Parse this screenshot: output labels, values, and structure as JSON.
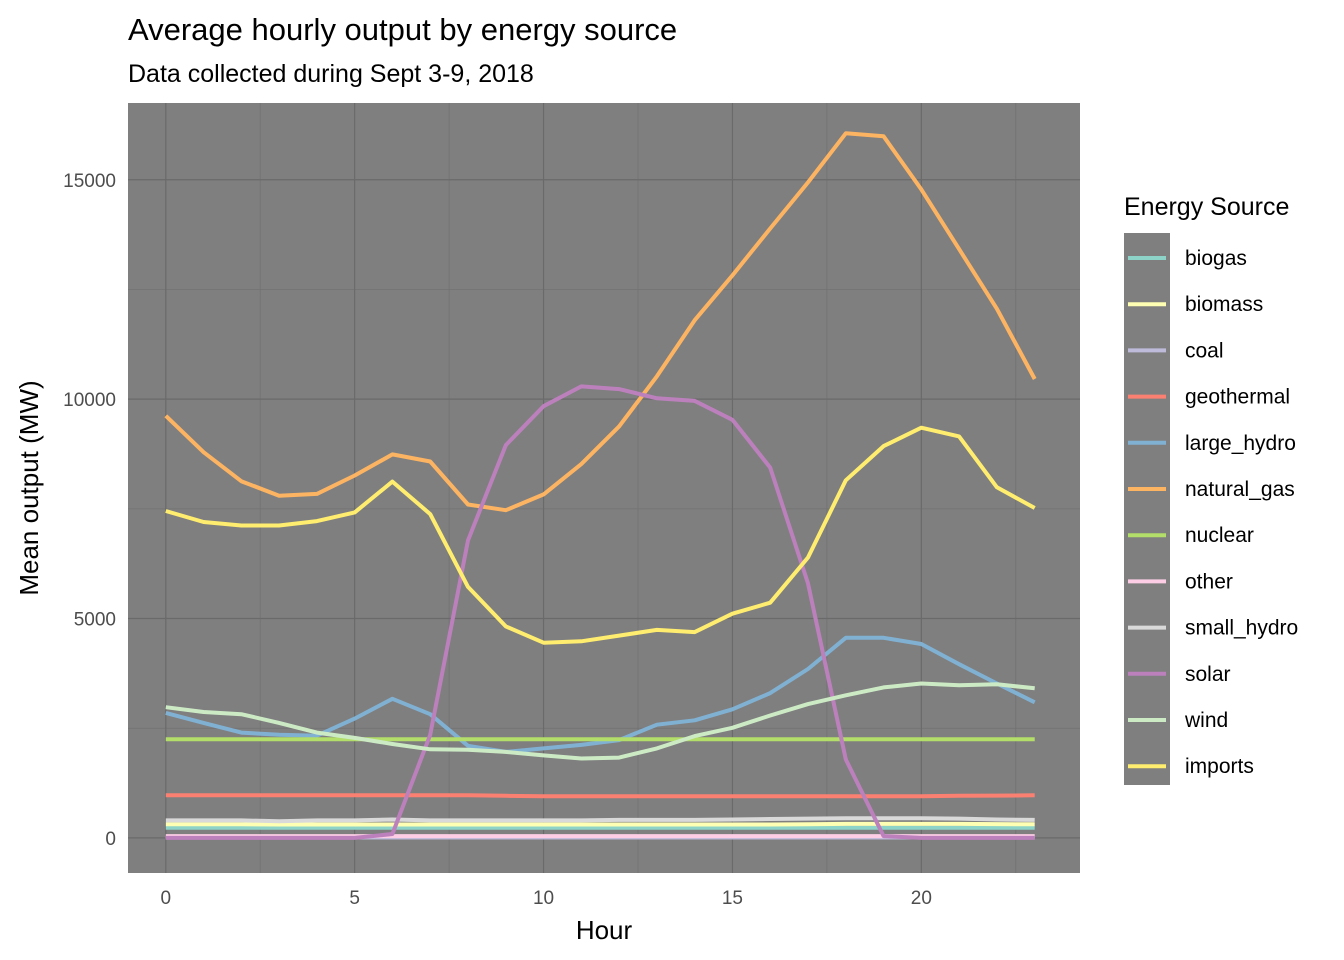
{
  "chart_data": {
    "type": "line",
    "title": "Average hourly output by energy source",
    "subtitle": "Data collected during Sept 3-9, 2018",
    "xlabel": "Hour",
    "ylabel": "Mean output (MW)",
    "xlim": [
      -1,
      24.2
    ],
    "ylim": [
      -800,
      16750
    ],
    "x_ticks": [
      0,
      5,
      10,
      15,
      20
    ],
    "y_ticks": [
      0,
      5000,
      10000,
      15000
    ],
    "grid": true,
    "legend_title": "Energy Source",
    "legend_position": "right",
    "x": [
      0,
      1,
      2,
      3,
      4,
      5,
      6,
      7,
      8,
      9,
      10,
      11,
      12,
      13,
      14,
      15,
      16,
      17,
      18,
      19,
      20,
      21,
      22,
      23
    ],
    "series": [
      {
        "name": "biogas",
        "color": "#8DD3C7",
        "values": [
          230,
          230,
          230,
          230,
          230,
          230,
          230,
          230,
          230,
          230,
          230,
          230,
          230,
          230,
          230,
          230,
          230,
          230,
          230,
          230,
          230,
          230,
          230,
          230
        ]
      },
      {
        "name": "biomass",
        "color": "#FFFFB3",
        "values": [
          310,
          310,
          310,
          305,
          305,
          305,
          305,
          305,
          305,
          305,
          305,
          305,
          305,
          305,
          305,
          305,
          305,
          310,
          320,
          320,
          320,
          320,
          315,
          310
        ]
      },
      {
        "name": "coal",
        "color": "#BEBADA",
        "values": [
          10,
          10,
          10,
          10,
          10,
          10,
          10,
          10,
          10,
          10,
          10,
          10,
          10,
          10,
          10,
          10,
          10,
          10,
          10,
          10,
          10,
          10,
          10,
          10
        ]
      },
      {
        "name": "geothermal",
        "color": "#FB8072",
        "values": [
          970,
          970,
          970,
          970,
          970,
          970,
          970,
          970,
          970,
          960,
          950,
          950,
          950,
          950,
          950,
          950,
          950,
          950,
          950,
          950,
          950,
          960,
          965,
          970
        ]
      },
      {
        "name": "large_hydro",
        "color": "#80B1D3",
        "values": [
          2850,
          2620,
          2400,
          2350,
          2330,
          2720,
          3170,
          2820,
          2100,
          1960,
          2040,
          2120,
          2230,
          2580,
          2680,
          2930,
          3300,
          3850,
          4560,
          4560,
          4420,
          3960,
          3520,
          3090
        ]
      },
      {
        "name": "natural_gas",
        "color": "#FDB462",
        "values": [
          9620,
          8790,
          8130,
          7800,
          7840,
          8260,
          8740,
          8580,
          7600,
          7470,
          7830,
          8520,
          9380,
          10520,
          11800,
          12820,
          13890,
          14940,
          16060,
          15990,
          14780,
          13420,
          12060,
          10460
        ]
      },
      {
        "name": "nuclear",
        "color": "#B3DE69",
        "values": [
          2250,
          2250,
          2250,
          2250,
          2250,
          2250,
          2250,
          2250,
          2250,
          2250,
          2250,
          2250,
          2250,
          2250,
          2250,
          2250,
          2250,
          2250,
          2250,
          2250,
          2250,
          2250,
          2250,
          2250
        ]
      },
      {
        "name": "other",
        "color": "#FCCDE5",
        "values": [
          40,
          40,
          40,
          40,
          40,
          40,
          40,
          40,
          40,
          40,
          40,
          40,
          40,
          40,
          40,
          40,
          40,
          40,
          40,
          40,
          40,
          40,
          40,
          40
        ]
      },
      {
        "name": "small_hydro",
        "color": "#D9D9D9",
        "values": [
          400,
          400,
          400,
          380,
          400,
          400,
          420,
          400,
          400,
          400,
          400,
          400,
          410,
          410,
          410,
          420,
          430,
          440,
          450,
          450,
          450,
          440,
          420,
          410
        ]
      },
      {
        "name": "solar",
        "color": "#BC80BD",
        "values": [
          0,
          0,
          0,
          0,
          0,
          0,
          90,
          2350,
          6780,
          8950,
          9840,
          10290,
          10230,
          10020,
          9960,
          9530,
          8440,
          5800,
          1790,
          40,
          0,
          0,
          0,
          0
        ]
      },
      {
        "name": "wind",
        "color": "#CCEBC5",
        "values": [
          2980,
          2870,
          2820,
          2620,
          2400,
          2280,
          2140,
          2020,
          2010,
          1960,
          1880,
          1810,
          1830,
          2040,
          2320,
          2510,
          2790,
          3050,
          3250,
          3430,
          3520,
          3480,
          3500,
          3410
        ]
      },
      {
        "name": "imports",
        "color": "#FFED6F",
        "values": [
          7450,
          7200,
          7120,
          7120,
          7220,
          7420,
          8120,
          7380,
          5720,
          4820,
          4450,
          4480,
          4610,
          4740,
          4690,
          5110,
          5360,
          6390,
          8150,
          8930,
          9350,
          9150,
          7990,
          7520
        ]
      }
    ]
  }
}
